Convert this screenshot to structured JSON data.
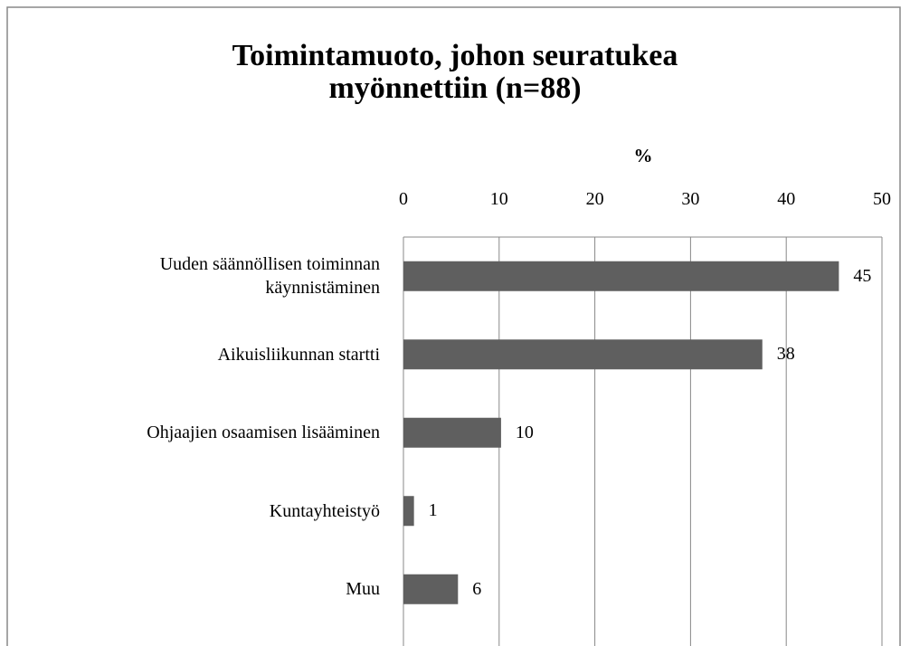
{
  "chart_data": {
    "type": "bar",
    "orientation": "horizontal",
    "title": "Toimintamuoto, johon seuratukea\nmyönnettiin (n=88)",
    "xlabel": "%",
    "categories": [
      "Uuden säännöllisen toiminnan\nkäynnistäminen",
      "Aikuisliikunnan startti",
      "Ohjaajien osaamisen lisääminen",
      "Kuntayhteistyö",
      "Muu"
    ],
    "values": [
      45.5,
      37.5,
      10.2,
      1.1,
      5.7
    ],
    "value_labels": [
      "45",
      "38",
      "10",
      "1",
      "6"
    ],
    "color": "#5f5f5f",
    "xlim": [
      0,
      50
    ],
    "xticks": [
      0,
      10,
      20,
      30,
      40,
      50
    ],
    "grid": true
  }
}
